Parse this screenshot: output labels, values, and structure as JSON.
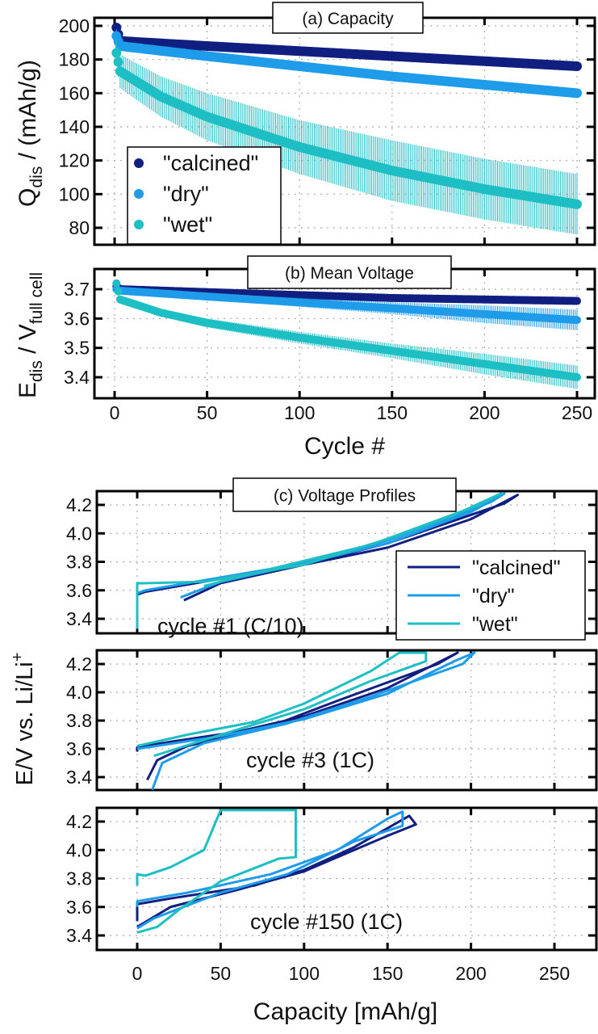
{
  "colors": {
    "calcined": "#101f80",
    "dry": "#1f9ce9",
    "wet": "#1ebfc4"
  },
  "chart_data": [
    {
      "type": "scatter",
      "title": "(a) Capacity",
      "xlabel": "Cycle #",
      "ylabel": "Q_dis / (mAh/g)",
      "ylabel_main": "Q",
      "ylabel_sub": "dis",
      "ylabel_rest": " / (mAh/g)",
      "xlim": [
        -5,
        255
      ],
      "ylim": [
        67,
        206
      ],
      "xticks": [
        0,
        50,
        100,
        150,
        200,
        250
      ],
      "yticks": [
        80,
        100,
        120,
        140,
        160,
        180,
        200
      ],
      "grid": true,
      "legend_placement": "bottom-left",
      "series": [
        {
          "name": "\"calcined\"",
          "key": "calcined",
          "x": [
            1,
            3,
            50,
            100,
            150,
            200,
            250
          ],
          "y": [
            199,
            191,
            188,
            185,
            182,
            179,
            176
          ],
          "err": [
            1,
            1,
            1,
            1,
            1,
            1,
            1
          ]
        },
        {
          "name": "\"dry\"",
          "key": "dry",
          "x": [
            1,
            3,
            50,
            100,
            150,
            200,
            250
          ],
          "y": [
            194,
            188,
            182,
            176,
            170,
            165,
            160
          ],
          "err": [
            4,
            2,
            1.5,
            1.5,
            1.5,
            2,
            2
          ]
        },
        {
          "name": "\"wet\"",
          "key": "wet",
          "x": [
            1,
            3,
            25,
            50,
            100,
            125,
            150,
            200,
            250
          ],
          "y": [
            184,
            173,
            158,
            146,
            128,
            121,
            114,
            103,
            94
          ],
          "err": [
            8,
            10,
            12,
            14,
            16,
            17,
            18,
            18,
            18
          ]
        }
      ]
    },
    {
      "type": "scatter",
      "title": "(b) Mean Voltage",
      "xlabel": "Cycle #",
      "ylabel": "E_dis / V_full cell",
      "ylabel_main": "E",
      "ylabel_sub": "dis",
      "ylabel_mid": " / V",
      "ylabel_sub2": "full cell",
      "xlim": [
        -5,
        255
      ],
      "ylim": [
        3.33,
        3.76
      ],
      "xticks": [
        0,
        50,
        100,
        150,
        200,
        250
      ],
      "yticks": [
        3.4,
        3.5,
        3.6,
        3.7
      ],
      "grid": true,
      "series": [
        {
          "name": "\"calcined\"",
          "key": "calcined",
          "x": [
            1,
            3,
            50,
            100,
            150,
            200,
            250
          ],
          "y": [
            3.71,
            3.7,
            3.69,
            3.68,
            3.67,
            3.665,
            3.66
          ],
          "err": [
            0.005,
            0.005,
            0.005,
            0.005,
            0.005,
            0.005,
            0.005
          ]
        },
        {
          "name": "\"dry\"",
          "key": "dry",
          "x": [
            1,
            3,
            50,
            100,
            150,
            200,
            250
          ],
          "y": [
            3.7,
            3.695,
            3.675,
            3.655,
            3.635,
            3.615,
            3.595
          ],
          "err": [
            0.005,
            0.005,
            0.01,
            0.015,
            0.02,
            0.03,
            0.035
          ]
        },
        {
          "name": "\"wet\"",
          "key": "wet",
          "x": [
            1,
            3,
            25,
            50,
            100,
            150,
            200,
            250
          ],
          "y": [
            3.72,
            3.665,
            3.62,
            3.585,
            3.535,
            3.49,
            3.445,
            3.4
          ],
          "err": [
            0.005,
            0.01,
            0.012,
            0.015,
            0.02,
            0.025,
            0.035,
            0.04
          ]
        }
      ]
    },
    {
      "type": "line",
      "title": "(c) Voltage Profiles",
      "xlabel": "Capacity [mAh/g]",
      "ylabel": "E/V vs. Li/Li",
      "ylabel_sup": "+",
      "xlim": [
        -25,
        275
      ],
      "xticks": [
        0,
        50,
        100,
        150,
        200,
        250
      ],
      "yticks": [
        3.4,
        3.6,
        3.8,
        4.0,
        4.2
      ],
      "grid": true,
      "legend_placement": "right",
      "legend": [
        "\"calcined\"",
        "\"dry\"",
        "\"wet\""
      ],
      "panels": [
        {
          "label": "cycle #1 (C/10)",
          "ylim": [
            3.3,
            4.29
          ],
          "series": [
            {
              "key": "calcined",
              "points": [
                [
                  0,
                  3.33
                ],
                [
                  0,
                  3.57
                ],
                [
                  5,
                  3.59
                ],
                [
                  50,
                  3.68
                ],
                [
                  100,
                  3.78
                ],
                [
                  150,
                  3.9
                ],
                [
                  200,
                  4.1
                ],
                [
                  228,
                  4.27
                ],
                [
                  220,
                  4.21
                ],
                [
                  150,
                  3.93
                ],
                [
                  100,
                  3.78
                ],
                [
                  50,
                  3.65
                ],
                [
                  28,
                  3.53
                ]
              ]
            },
            {
              "key": "dry",
              "points": [
                [
                  0,
                  3.33
                ],
                [
                  0,
                  3.58
                ],
                [
                  5,
                  3.6
                ],
                [
                  50,
                  3.69
                ],
                [
                  100,
                  3.79
                ],
                [
                  150,
                  3.93
                ],
                [
                  200,
                  4.15
                ],
                [
                  220,
                  4.28
                ],
                [
                  212,
                  4.22
                ],
                [
                  150,
                  3.95
                ],
                [
                  100,
                  3.79
                ],
                [
                  50,
                  3.66
                ],
                [
                  26,
                  3.55
                ]
              ]
            },
            {
              "key": "wet",
              "points": [
                [
                  0,
                  3.33
                ],
                [
                  0,
                  3.65
                ],
                [
                  5,
                  3.65
                ],
                [
                  40,
                  3.66
                ],
                [
                  100,
                  3.78
                ],
                [
                  150,
                  3.96
                ],
                [
                  190,
                  4.13
                ],
                [
                  218,
                  4.28
                ],
                [
                  205,
                  4.2
                ],
                [
                  140,
                  3.92
                ],
                [
                  80,
                  3.75
                ],
                [
                  40,
                  3.63
                ]
              ]
            }
          ]
        },
        {
          "label": "cycle #3 (1C)",
          "ylim": [
            3.3,
            4.29
          ],
          "series": [
            {
              "key": "calcined",
              "points": [
                [
                  0,
                  3.58
                ],
                [
                  0,
                  3.61
                ],
                [
                  20,
                  3.65
                ],
                [
                  60,
                  3.72
                ],
                [
                  100,
                  3.83
                ],
                [
                  150,
                  4.03
                ],
                [
                  192,
                  4.28
                ],
                [
                  180,
                  4.2
                ],
                [
                  120,
                  3.94
                ],
                [
                  80,
                  3.76
                ],
                [
                  30,
                  3.62
                ],
                [
                  12,
                  3.52
                ],
                [
                  6,
                  3.38
                ]
              ]
            },
            {
              "key": "dry",
              "points": [
                [
                  0,
                  3.6
                ],
                [
                  50,
                  3.69
                ],
                [
                  100,
                  3.81
                ],
                [
                  150,
                  3.99
                ],
                [
                  190,
                  4.22
                ],
                [
                  202,
                  4.28
                ],
                [
                  195,
                  4.2
                ],
                [
                  140,
                  3.97
                ],
                [
                  90,
                  3.78
                ],
                [
                  40,
                  3.64
                ],
                [
                  15,
                  3.5
                ],
                [
                  9,
                  3.31
                ]
              ]
            },
            {
              "key": "wet",
              "points": [
                [
                  0,
                  3.62
                ],
                [
                  30,
                  3.7
                ],
                [
                  70,
                  3.79
                ],
                [
                  100,
                  3.92
                ],
                [
                  140,
                  4.15
                ],
                [
                  157,
                  4.28
                ],
                [
                  173,
                  4.28
                ],
                [
                  173,
                  4.22
                ],
                [
                  140,
                  4.08
                ],
                [
                  100,
                  3.88
                ],
                [
                  50,
                  3.7
                ],
                [
                  10,
                  3.55
                ]
              ]
            }
          ]
        },
        {
          "label": "cycle #150 (1C)",
          "ylim": [
            3.37,
            4.3
          ],
          "series": [
            {
              "key": "calcined",
              "points": [
                [
                  0,
                  3.5
                ],
                [
                  0,
                  3.62
                ],
                [
                  20,
                  3.66
                ],
                [
                  70,
                  3.75
                ],
                [
                  100,
                  3.86
                ],
                [
                  130,
                  4.02
                ],
                [
                  163,
                  4.24
                ],
                [
                  167,
                  4.18
                ],
                [
                  150,
                  4.1
                ],
                [
                  100,
                  3.85
                ],
                [
                  60,
                  3.72
                ],
                [
                  20,
                  3.6
                ],
                [
                  0,
                  3.46
                ]
              ]
            },
            {
              "key": "dry",
              "points": [
                [
                  0,
                  3.6
                ],
                [
                  0,
                  3.64
                ],
                [
                  30,
                  3.7
                ],
                [
                  80,
                  3.83
                ],
                [
                  120,
                  4.0
                ],
                [
                  150,
                  4.22
                ],
                [
                  159,
                  4.27
                ],
                [
                  159,
                  4.17
                ],
                [
                  130,
                  4.06
                ],
                [
                  90,
                  3.83
                ],
                [
                  50,
                  3.7
                ],
                [
                  10,
                  3.52
                ],
                [
                  0,
                  3.45
                ]
              ]
            },
            {
              "key": "wet",
              "points": [
                [
                  0,
                  3.75
                ],
                [
                  0,
                  3.83
                ],
                [
                  5,
                  3.82
                ],
                [
                  20,
                  3.88
                ],
                [
                  40,
                  4.0
                ],
                [
                  50,
                  4.28
                ],
                [
                  95,
                  4.28
                ],
                [
                  95,
                  3.95
                ],
                [
                  85,
                  3.94
                ],
                [
                  50,
                  3.78
                ],
                [
                  25,
                  3.58
                ],
                [
                  12,
                  3.46
                ],
                [
                  0,
                  3.42
                ]
              ]
            }
          ]
        }
      ]
    }
  ]
}
